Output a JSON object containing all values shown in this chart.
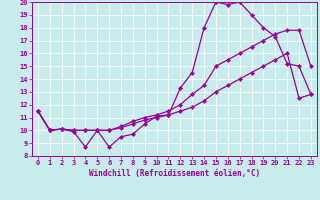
{
  "xlabel": "Windchill (Refroidissement éolien,°C)",
  "bg_color": "#c8ecec",
  "line_color": "#990099",
  "grid_color": "#ffffff",
  "spine_color": "#990099",
  "xlim": [
    -0.5,
    23.5
  ],
  "ylim": [
    8,
    20
  ],
  "yticks": [
    8,
    9,
    10,
    11,
    12,
    13,
    14,
    15,
    16,
    17,
    18,
    19,
    20
  ],
  "xticks": [
    0,
    1,
    2,
    3,
    4,
    5,
    6,
    7,
    8,
    9,
    10,
    11,
    12,
    13,
    14,
    15,
    16,
    17,
    18,
    19,
    20,
    21,
    22,
    23
  ],
  "line1_x": [
    0,
    1,
    2,
    3,
    4,
    5,
    6,
    7,
    8,
    9,
    10,
    11,
    12,
    13,
    14,
    15,
    16,
    17,
    18,
    19,
    20,
    21,
    22,
    23
  ],
  "line1_y": [
    11.5,
    10.0,
    10.1,
    9.9,
    8.7,
    10.0,
    8.7,
    9.5,
    9.7,
    10.5,
    11.1,
    11.2,
    13.3,
    14.5,
    18.0,
    20.0,
    19.8,
    20.0,
    19.0,
    18.0,
    17.3,
    15.2,
    15.0,
    12.8
  ],
  "line2_x": [
    0,
    1,
    2,
    3,
    4,
    5,
    6,
    7,
    8,
    9,
    10,
    11,
    12,
    13,
    14,
    15,
    16,
    17,
    18,
    19,
    20,
    21,
    22,
    23
  ],
  "line2_y": [
    11.5,
    10.0,
    10.1,
    10.0,
    10.0,
    10.0,
    10.0,
    10.3,
    10.7,
    11.0,
    11.2,
    11.5,
    12.0,
    12.8,
    13.5,
    15.0,
    15.5,
    16.0,
    16.5,
    17.0,
    17.5,
    17.8,
    17.8,
    15.0
  ],
  "line3_x": [
    0,
    1,
    2,
    3,
    4,
    5,
    6,
    7,
    8,
    9,
    10,
    11,
    12,
    13,
    14,
    15,
    16,
    17,
    18,
    19,
    20,
    21,
    22,
    23
  ],
  "line3_y": [
    11.5,
    10.0,
    10.1,
    10.0,
    10.0,
    10.0,
    10.0,
    10.2,
    10.5,
    10.8,
    11.0,
    11.2,
    11.5,
    11.8,
    12.3,
    13.0,
    13.5,
    14.0,
    14.5,
    15.0,
    15.5,
    16.0,
    12.5,
    12.8
  ],
  "xlabel_fontsize": 5.5,
  "tick_fontsize": 5.0
}
